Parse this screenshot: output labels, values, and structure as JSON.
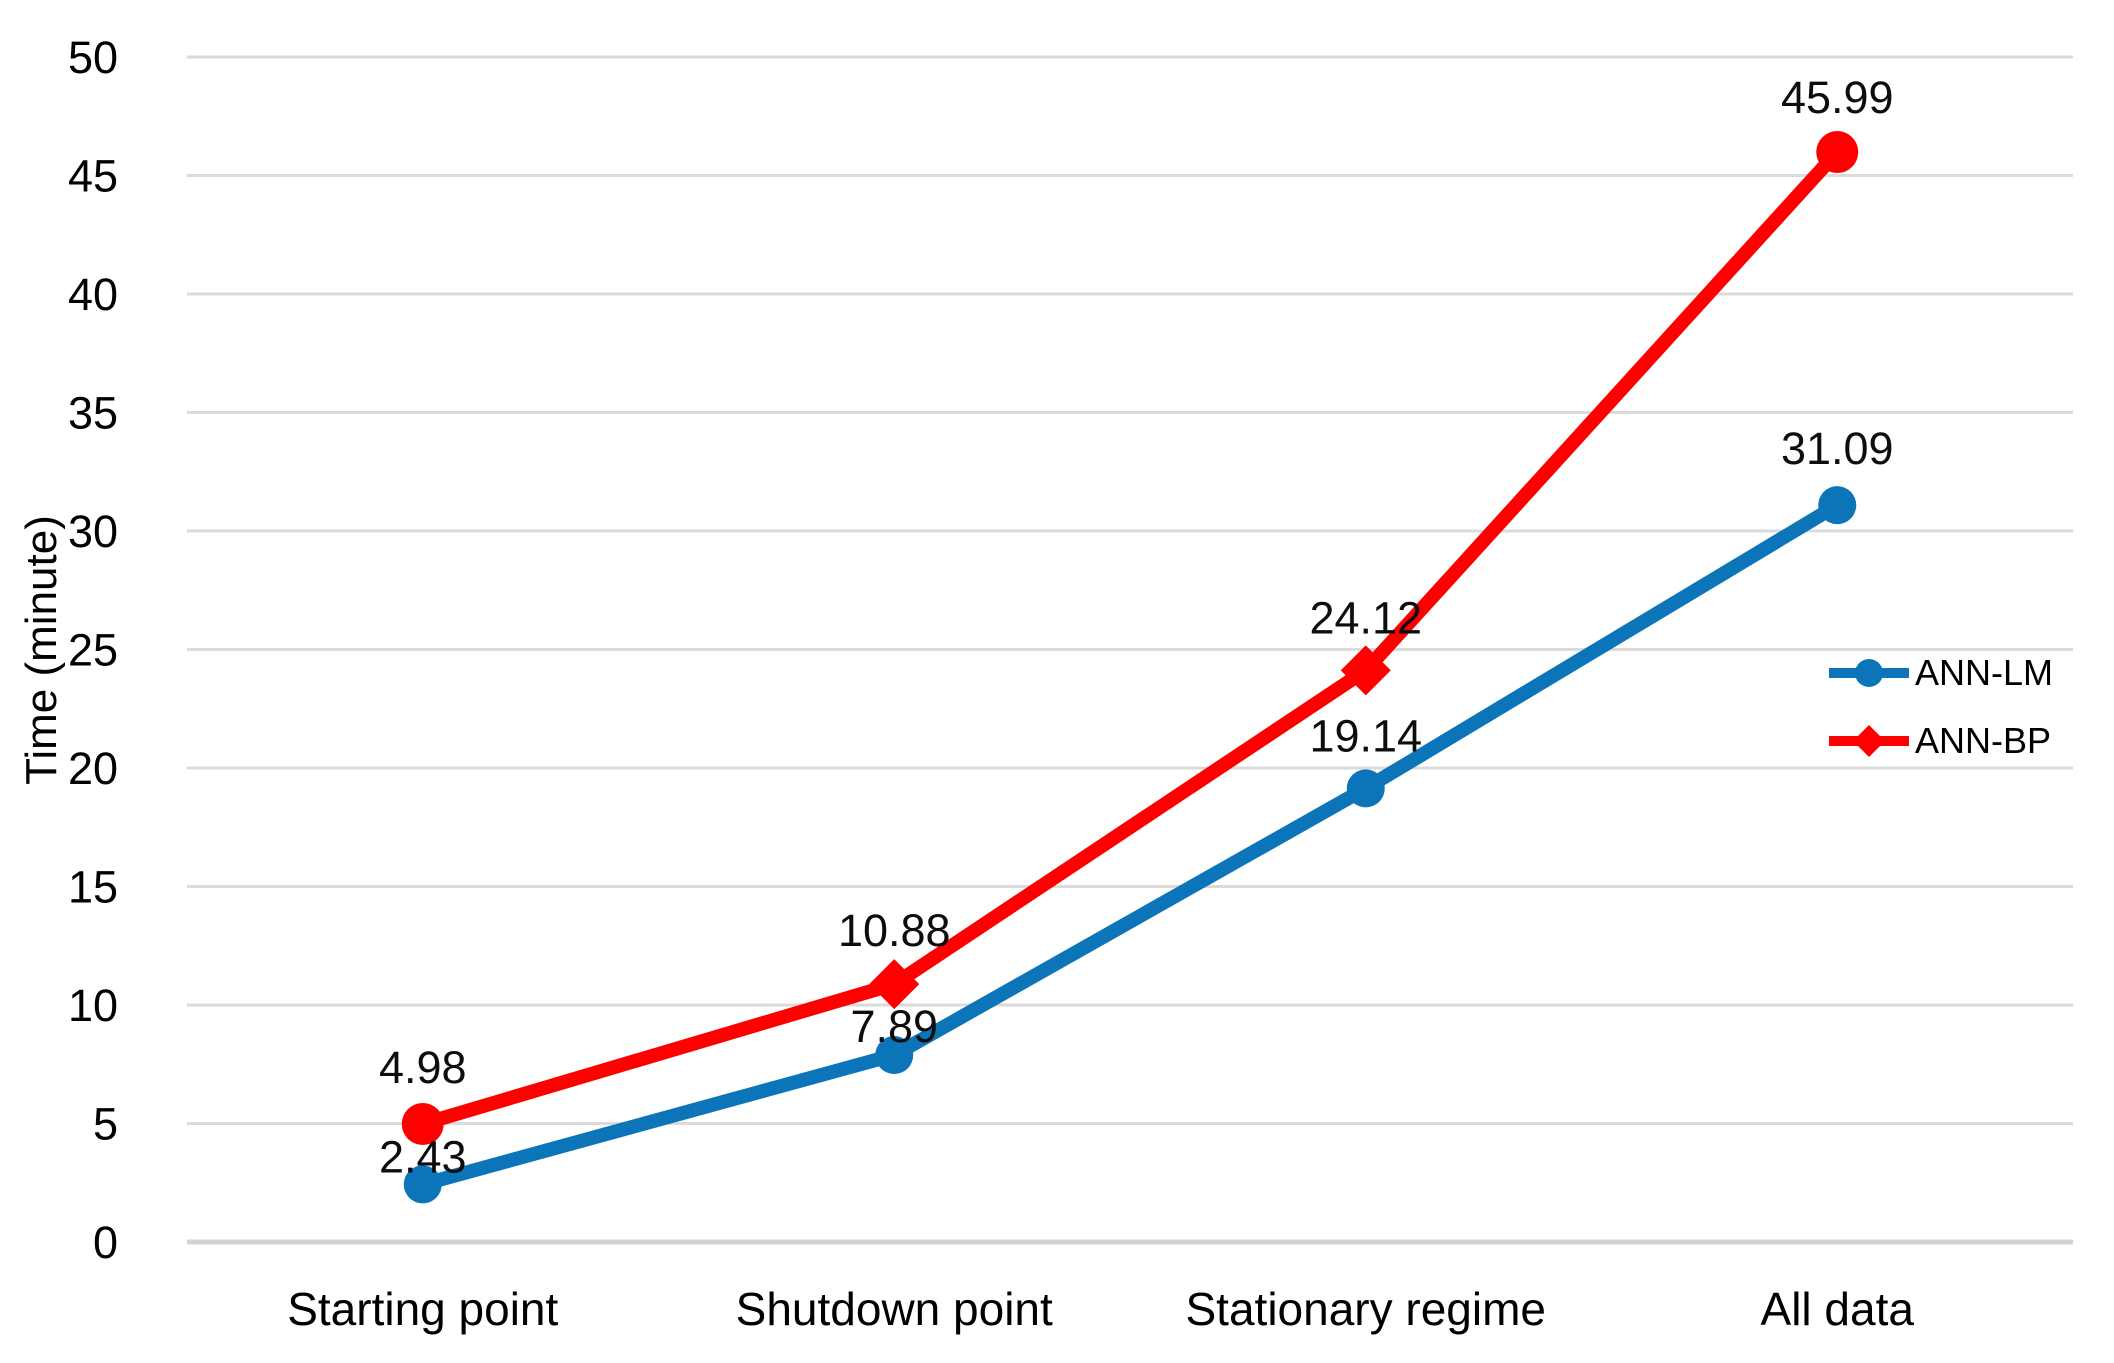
{
  "chart_data": {
    "type": "line",
    "title": "",
    "xlabel": "",
    "ylabel": "Time (minute)",
    "categories": [
      "Starting point",
      "Shutdown point",
      "Stationary regime",
      "All data"
    ],
    "series": [
      {
        "name": "ANN-LM",
        "values": [
          2.43,
          7.89,
          19.14,
          31.09
        ],
        "labels": [
          "2.43",
          "7.89",
          "19.14",
          "31.09"
        ],
        "color": "#0C74B8",
        "marker": "circle"
      },
      {
        "name": "ANN-BP",
        "values": [
          4.98,
          10.88,
          24.12,
          45.99
        ],
        "labels": [
          "4.98",
          "10.88",
          "24.12",
          "45.99"
        ],
        "color": "#FF0000",
        "marker": "diamond"
      }
    ],
    "ylim": [
      0,
      50
    ],
    "ytick_step": 5,
    "yticks": [
      0,
      5,
      10,
      15,
      20,
      25,
      30,
      35,
      40,
      45,
      50
    ],
    "grid": "horizontal",
    "gridline_color": "#DBDBDB",
    "baseline_color": "#D4D4D4",
    "label_color": "#000000",
    "background": "#FFFFFF",
    "legend_position": "middle-right",
    "data_labels": true
  }
}
